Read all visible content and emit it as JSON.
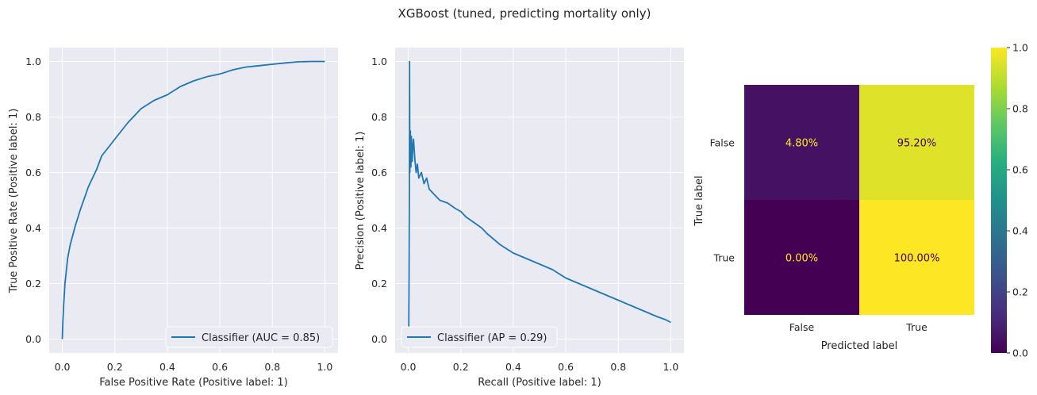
{
  "figure": {
    "title": "XGBoost (tuned, predicting mortality only)"
  },
  "chart_data": [
    {
      "type": "line",
      "xlabel": "False Positive Rate (Positive label: 1)",
      "ylabel": "True Positive Rate (Positive label: 1)",
      "xlim": [
        -0.05,
        1.05
      ],
      "ylim": [
        -0.05,
        1.05
      ],
      "xticks": [
        "0.0",
        "0.2",
        "0.4",
        "0.6",
        "0.8",
        "1.0"
      ],
      "yticks": [
        "0.0",
        "0.2",
        "0.4",
        "0.6",
        "0.8",
        "1.0"
      ],
      "grid": true,
      "legend_position": "lower-right",
      "series": [
        {
          "name": "Classifier (AUC = 0.85)",
          "color": "#1f77b4",
          "x": [
            0,
            0.002,
            0.005,
            0.01,
            0.02,
            0.03,
            0.05,
            0.07,
            0.1,
            0.13,
            0.15,
            0.2,
            0.25,
            0.3,
            0.35,
            0.4,
            0.45,
            0.5,
            0.55,
            0.6,
            0.65,
            0.7,
            0.75,
            0.8,
            0.85,
            0.9,
            0.95,
            1.0
          ],
          "y": [
            0,
            0.06,
            0.12,
            0.2,
            0.29,
            0.34,
            0.41,
            0.47,
            0.55,
            0.61,
            0.66,
            0.72,
            0.78,
            0.83,
            0.86,
            0.88,
            0.91,
            0.93,
            0.945,
            0.955,
            0.97,
            0.98,
            0.985,
            0.99,
            0.995,
            0.999,
            1.0,
            1.0
          ]
        }
      ]
    },
    {
      "type": "line",
      "xlabel": "Recall (Positive label: 1)",
      "ylabel": "Precision (Positive label: 1)",
      "xlim": [
        -0.05,
        1.05
      ],
      "ylim": [
        -0.05,
        1.05
      ],
      "xticks": [
        "0.0",
        "0.2",
        "0.4",
        "0.6",
        "0.8",
        "1.0"
      ],
      "yticks": [
        "0.0",
        "0.2",
        "0.4",
        "0.6",
        "0.8",
        "1.0"
      ],
      "grid": true,
      "legend_position": "lower-left",
      "series": [
        {
          "name": "Classifier (AP = 0.29)",
          "color": "#1f77b4",
          "x": [
            0.0,
            0.002,
            0.003,
            0.004,
            0.005,
            0.006,
            0.008,
            0.01,
            0.012,
            0.015,
            0.018,
            0.02,
            0.025,
            0.03,
            0.035,
            0.04,
            0.05,
            0.06,
            0.07,
            0.08,
            0.09,
            0.1,
            0.12,
            0.15,
            0.18,
            0.2,
            0.22,
            0.25,
            0.28,
            0.3,
            0.35,
            0.4,
            0.45,
            0.5,
            0.55,
            0.6,
            0.65,
            0.7,
            0.75,
            0.8,
            0.85,
            0.9,
            0.95,
            0.98,
            1.0
          ],
          "y": [
            0.0,
            0.05,
            0.2,
            0.5,
            1.0,
            0.6,
            0.75,
            0.62,
            0.73,
            0.64,
            0.7,
            0.72,
            0.65,
            0.6,
            0.63,
            0.58,
            0.6,
            0.56,
            0.58,
            0.54,
            0.53,
            0.52,
            0.5,
            0.49,
            0.47,
            0.46,
            0.44,
            0.42,
            0.4,
            0.38,
            0.34,
            0.31,
            0.29,
            0.27,
            0.25,
            0.22,
            0.2,
            0.18,
            0.16,
            0.14,
            0.12,
            0.1,
            0.08,
            0.07,
            0.06
          ]
        }
      ]
    },
    {
      "type": "heatmap",
      "xlabel": "Predicted label",
      "ylabel": "True label",
      "x_categories": [
        "False",
        "True"
      ],
      "y_categories": [
        "False",
        "True"
      ],
      "values": [
        [
          0.048,
          0.952
        ],
        [
          0.0,
          1.0
        ]
      ],
      "labels": [
        [
          "4.80%",
          "95.20%"
        ],
        [
          "0.00%",
          "100.00%"
        ]
      ],
      "colormap": "viridis",
      "colorbar_ticks": [
        "0.0",
        "0.2",
        "0.4",
        "0.6",
        "0.8",
        "1.0"
      ],
      "vmin": 0.0,
      "vmax": 1.0,
      "text_colors": {
        "dark_cell": "#fde725",
        "light_cell": "#440154"
      }
    }
  ]
}
